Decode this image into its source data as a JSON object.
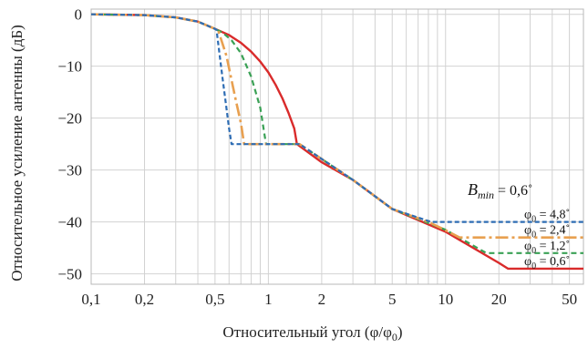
{
  "chart_data": {
    "type": "line",
    "title": "",
    "xlabel": "Относительный угол (φ/φ",
    "xlabel_sub": "0",
    "xlabel_close": ")",
    "ylabel": "Относительное усиление антенны (дБ)",
    "xscale": "log",
    "xlim": [
      0.1,
      60
    ],
    "ylim": [
      -52,
      1
    ],
    "grid": true,
    "x_ticks": [
      {
        "value": 0.1,
        "label": "0,1"
      },
      {
        "value": 0.2,
        "label": "0,2"
      },
      {
        "value": 0.5,
        "label": "0,5"
      },
      {
        "value": 1,
        "label": "1"
      },
      {
        "value": 2,
        "label": "2"
      },
      {
        "value": 5,
        "label": "5"
      },
      {
        "value": 10,
        "label": "10"
      },
      {
        "value": 20,
        "label": "20"
      },
      {
        "value": 50,
        "label": "50"
      }
    ],
    "y_ticks": [
      {
        "value": 0,
        "label": "0"
      },
      {
        "value": -10,
        "label": "−10"
      },
      {
        "value": -20,
        "label": "−20"
      },
      {
        "value": -30,
        "label": "−30"
      },
      {
        "value": -40,
        "label": "−40"
      },
      {
        "value": -50,
        "label": "−50"
      }
    ],
    "annotation": {
      "main": "B",
      "sub": "min",
      "text": " = 0,6˚"
    },
    "series": [
      {
        "name": "φ0 = 4,8˚",
        "label_main": "φ",
        "label_sub": "0",
        "label_text": " = 4,8˚",
        "color": "#2e6db4",
        "dash": "5,3",
        "width": 2.2,
        "x": [
          0.1,
          0.2,
          0.3,
          0.4,
          0.5,
          0.51,
          0.55,
          0.6,
          0.62,
          1.0,
          1.5,
          3,
          5,
          8.3,
          10,
          20,
          60
        ],
        "y": [
          0,
          -0.15,
          -0.6,
          -1.4,
          -2.8,
          -3.0,
          -12,
          -22,
          -25,
          -25,
          -25,
          -31.9,
          -37.5,
          -40,
          -40,
          -40,
          -40
        ]
      },
      {
        "name": "φ0 = 2,4˚",
        "label_main": "φ",
        "label_sub": "0",
        "label_text": " = 2,4˚",
        "color": "#e8a050",
        "dash": "14,4,3,4",
        "width": 2.6,
        "x": [
          0.1,
          0.2,
          0.3,
          0.4,
          0.5,
          0.52,
          0.58,
          0.65,
          0.7,
          0.73,
          1.0,
          1.5,
          3,
          5,
          8,
          10,
          12,
          60
        ],
        "y": [
          0,
          -0.15,
          -0.6,
          -1.4,
          -2.8,
          -3.0,
          -8,
          -16,
          -21,
          -25,
          -25,
          -25,
          -31.9,
          -37.5,
          -40,
          -41.6,
          -43,
          -43
        ]
      },
      {
        "name": "φ0 = 1,2˚",
        "label_main": "φ",
        "label_sub": "0",
        "label_text": " = 1,2˚",
        "color": "#3aa155",
        "dash": "6,4",
        "width": 2.2,
        "x": [
          0.1,
          0.2,
          0.3,
          0.4,
          0.5,
          0.55,
          0.62,
          0.7,
          0.8,
          0.9,
          0.97,
          1.0,
          1.5,
          3,
          5,
          10,
          17,
          60
        ],
        "y": [
          0,
          -0.15,
          -0.6,
          -1.4,
          -2.8,
          -3.5,
          -5,
          -7.5,
          -12,
          -18,
          -25,
          -25,
          -25,
          -31.9,
          -37.5,
          -41.5,
          -46,
          -46
        ]
      },
      {
        "name": "φ0 = 0,6˚",
        "label_main": "φ",
        "label_sub": "0",
        "label_text": " = 0,6˚",
        "color": "#d92b2b",
        "dash": "",
        "width": 2.4,
        "x": [
          0.1,
          0.2,
          0.3,
          0.4,
          0.5,
          0.6,
          0.7,
          0.8,
          0.9,
          1.0,
          1.1,
          1.2,
          1.3,
          1.4,
          1.45,
          2,
          3,
          5,
          10,
          20,
          22.5,
          60
        ],
        "y": [
          0,
          -0.15,
          -0.6,
          -1.4,
          -2.8,
          -4.0,
          -5.5,
          -7.2,
          -9.1,
          -11.2,
          -13.6,
          -16.2,
          -19.0,
          -22.0,
          -25,
          -28.5,
          -31.9,
          -37.5,
          -41.9,
          -47.9,
          -49,
          -49
        ]
      }
    ]
  }
}
